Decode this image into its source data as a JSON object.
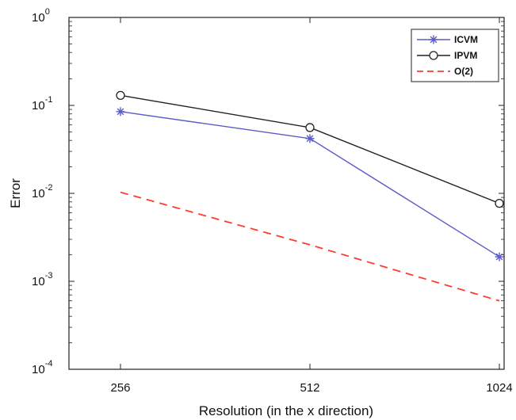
{
  "chart_data": {
    "type": "line",
    "x": [
      256,
      512,
      1024
    ],
    "x_tick_labels": [
      "256",
      "512",
      "1024"
    ],
    "y_scale": "log",
    "ylim": [
      0.0001,
      1
    ],
    "y_ticks": [
      {
        "base": "10",
        "exp": "0"
      },
      {
        "base": "10",
        "exp": "-1"
      },
      {
        "base": "10",
        "exp": "-2"
      },
      {
        "base": "10",
        "exp": "-3"
      },
      {
        "base": "10",
        "exp": "-4"
      }
    ],
    "xlabel": "Resolution (in the x direction)",
    "ylabel": "Error",
    "legend_position": "top-right",
    "grid": false,
    "series": [
      {
        "name": "ICVM",
        "values": [
          0.085,
          0.042,
          0.0019
        ],
        "color": "#5b5bc8",
        "marker": "asterisk",
        "dash": "solid"
      },
      {
        "name": "IPVM",
        "values": [
          0.13,
          0.056,
          0.0077
        ],
        "color": "#222222",
        "marker": "circle",
        "dash": "solid"
      },
      {
        "name": "O(2)",
        "values": [
          0.0103,
          0.0026,
          0.0006
        ],
        "color": "#ff3b2f",
        "marker": "none",
        "dash": "dashed"
      }
    ]
  }
}
